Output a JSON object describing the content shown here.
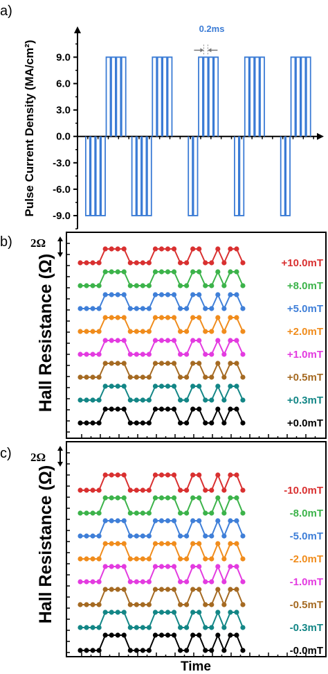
{
  "chart_data": [
    {
      "panel": "a)",
      "type": "line",
      "ylabel": "Pulse Current Density (MA/cm²)",
      "yticks": [
        "9.0",
        "6.0",
        "3.0",
        "0.0",
        "-3.0",
        "-6.0",
        "-9.0"
      ],
      "ytick_values": [
        9,
        6,
        3,
        0,
        -3,
        -6,
        -9
      ],
      "ylim": [
        -10.5,
        12.5
      ],
      "xlim": [
        0,
        48
      ],
      "annotation": "0.2ms",
      "annotation_color": "#3a7bd5",
      "pulse_color": "#3a7bd5",
      "pulse_amplitude": 9,
      "pulse_width": 0.8,
      "negative_pulses_at": [
        2,
        3,
        4,
        5,
        11,
        12,
        13,
        14,
        22,
        23,
        31,
        32,
        40,
        41
      ],
      "positive_pulses_at": [
        6,
        7,
        8,
        9,
        15,
        16,
        17,
        18,
        24,
        25,
        26,
        27,
        33,
        34,
        35,
        36,
        42,
        43,
        44,
        45
      ]
    },
    {
      "panel": "b)",
      "type": "line",
      "ylabel": "Hall Resistance (Ω)",
      "scale_bar": "2Ω",
      "xlim": [
        -0.5,
        27.5
      ],
      "pattern": [
        0,
        0,
        0,
        0,
        1,
        1,
        1,
        1,
        0,
        0,
        0,
        0,
        1,
        1,
        1,
        1,
        0,
        0,
        1,
        1,
        0,
        0,
        1,
        0,
        1,
        1,
        0
      ],
      "series": [
        {
          "name": "+10.0mT",
          "color": "#d93030"
        },
        {
          "name": "+8.0mT",
          "color": "#3cb34a"
        },
        {
          "name": "+5.0mT",
          "color": "#3f7fd8"
        },
        {
          "name": "+2.0mT",
          "color": "#f08c1c"
        },
        {
          "name": "+1.0mT",
          "color": "#e33be0"
        },
        {
          "name": "+0.5mT",
          "color": "#a56a22"
        },
        {
          "name": "+0.3mT",
          "color": "#138686"
        },
        {
          "name": "+0.0mT",
          "color": "#000000"
        }
      ]
    },
    {
      "panel": "c)",
      "type": "line",
      "ylabel": "Hall Resistance (Ω)",
      "xlabel": "Time",
      "scale_bar": "2Ω",
      "xlim": [
        -0.5,
        27.5
      ],
      "pattern": [
        1,
        1,
        1,
        1,
        0,
        0,
        0,
        0,
        1,
        1,
        1,
        1,
        0,
        0,
        0,
        0,
        1,
        1,
        0,
        0,
        1,
        1,
        0,
        1,
        0,
        0,
        1
      ],
      "series": [
        {
          "name": "-10.0mT",
          "color": "#d93030"
        },
        {
          "name": "-8.0mT",
          "color": "#3cb34a"
        },
        {
          "name": "-5.0mT",
          "color": "#3f7fd8"
        },
        {
          "name": "-2.0mT",
          "color": "#f08c1c"
        },
        {
          "name": "-1.0mT",
          "color": "#e33be0"
        },
        {
          "name": "-0.5mT",
          "color": "#a56a22"
        },
        {
          "name": "-0.3mT",
          "color": "#138686"
        },
        {
          "name": "-0.0mT",
          "color": "#000000"
        }
      ]
    }
  ]
}
